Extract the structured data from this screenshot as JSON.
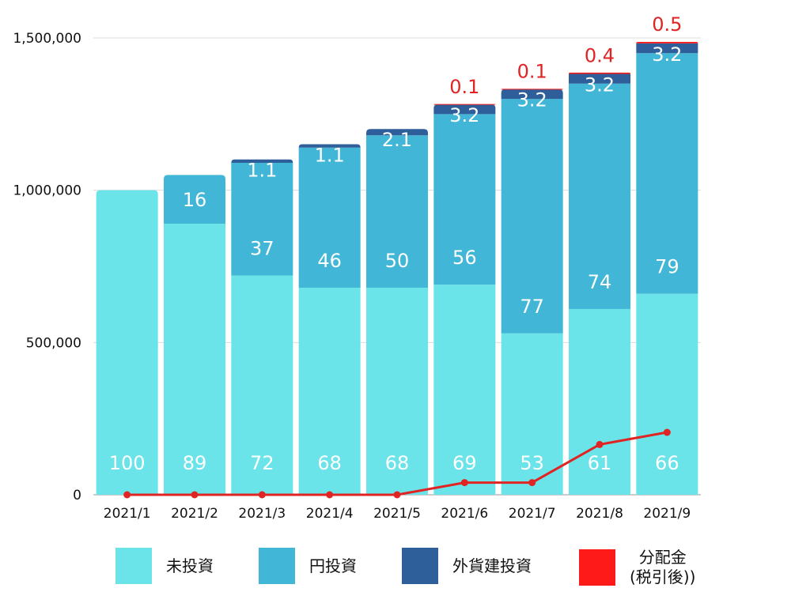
{
  "chart_data": {
    "type": "bar",
    "stacked": true,
    "categories": [
      "2021/1",
      "2021/2",
      "2021/3",
      "2021/4",
      "2021/5",
      "2021/6",
      "2021/7",
      "2021/8",
      "2021/9"
    ],
    "ylim": [
      0,
      1500000
    ],
    "yticks": [
      0,
      500000,
      1000000,
      1500000
    ],
    "ytick_labels": [
      "0",
      "500,000",
      "1,000,000",
      "1,500,000"
    ],
    "totals": [
      1000000,
      1050000,
      1100000,
      1150000,
      1200000,
      1282000,
      1332000,
      1385000,
      1487000
    ],
    "series": [
      {
        "name": "未投資",
        "color": "#6ae4e8",
        "values": [
          1000000,
          890000,
          720000,
          680000,
          680000,
          690000,
          530000,
          610000,
          660000
        ],
        "labels": [
          "100",
          "89",
          "72",
          "68",
          "68",
          "69",
          "53",
          "61",
          "66"
        ]
      },
      {
        "name": "円投資",
        "color": "#42b6d6",
        "values": [
          0,
          160000,
          370000,
          460000,
          500000,
          560000,
          770000,
          740000,
          790000
        ],
        "labels": [
          "",
          "16",
          "37",
          "46",
          "50",
          "56",
          "77",
          "74",
          "79"
        ]
      },
      {
        "name": "外貨建投資",
        "color": "#2e5f9a",
        "values": [
          0,
          0,
          11000,
          11000,
          21000,
          32000,
          32000,
          32000,
          32000
        ],
        "labels": [
          "",
          "",
          "1.1",
          "1.1",
          "2.1",
          "3.2",
          "3.2",
          "3.2",
          "3.2"
        ]
      },
      {
        "name": "分配金(税引後)",
        "color": "#ff1a1a",
        "values": [
          0,
          0,
          0,
          0,
          0,
          1000,
          1000,
          4000,
          5000
        ],
        "labels": [
          "",
          "",
          "",
          "",
          "",
          "0.1",
          "0.1",
          "0.4",
          "0.5"
        ]
      }
    ],
    "line": {
      "name": "分配金(税引後)",
      "color": "#e02424",
      "values": [
        0,
        0,
        0,
        0,
        0,
        40000,
        40000,
        165000,
        205000
      ]
    }
  },
  "legend": {
    "items": [
      {
        "label": "未投資",
        "color": "#6ae4e8"
      },
      {
        "label": "円投資",
        "color": "#42b6d6"
      },
      {
        "label": "外貨建投資",
        "color": "#2e5f9a"
      },
      {
        "label_line1": "分配金",
        "label_line2": "(税引後))",
        "color": "#ff1a1a"
      }
    ]
  }
}
